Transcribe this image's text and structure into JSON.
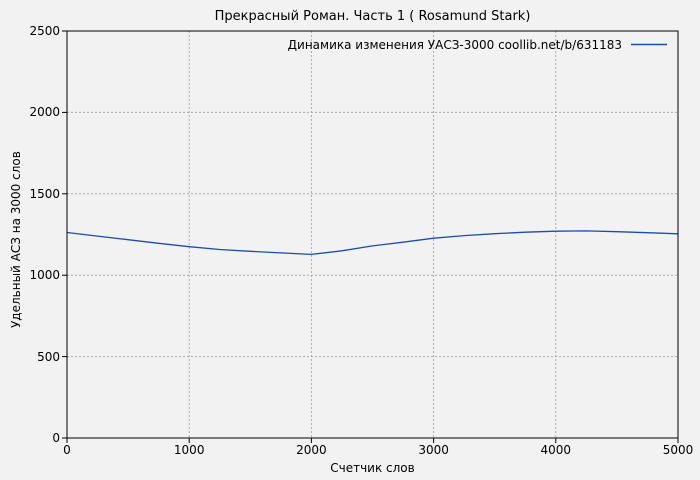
{
  "chart_data": {
    "type": "line",
    "title": "Прекрасный Роман. Часть 1 ( Rosamund Stark)",
    "xlabel": "Счетчик слов",
    "ylabel": "Удельный АСЗ на 3000 слов",
    "legend": {
      "label": "Динамика изменения УАСЗ-3000 coollib.net/b/631183",
      "position": "top-right-inside"
    },
    "xlim": [
      0,
      5000
    ],
    "ylim": [
      0,
      2500
    ],
    "x_ticks": [
      0,
      1000,
      2000,
      3000,
      4000,
      5000
    ],
    "y_ticks": [
      0,
      500,
      1000,
      1500,
      2000,
      2500
    ],
    "grid": true,
    "grid_style": "dashed",
    "series": [
      {
        "name": "Динамика изменения УАСЗ-3000 coollib.net/b/631183",
        "color": "#1c4dae",
        "x": [
          0,
          250,
          500,
          750,
          1000,
          1250,
          1500,
          1750,
          2000,
          2250,
          2500,
          2750,
          3000,
          3250,
          3500,
          3750,
          4000,
          4250,
          4500,
          4750,
          5000
        ],
        "y": [
          1262,
          1240,
          1218,
          1196,
          1175,
          1158,
          1147,
          1137,
          1128,
          1150,
          1180,
          1203,
          1227,
          1243,
          1255,
          1264,
          1270,
          1272,
          1267,
          1261,
          1254
        ]
      }
    ],
    "colors": {
      "background": "#f2f2f2",
      "frame": "#000000",
      "grid": "#a8a8a8",
      "text": "#000000",
      "line": "#1c4dae"
    }
  }
}
